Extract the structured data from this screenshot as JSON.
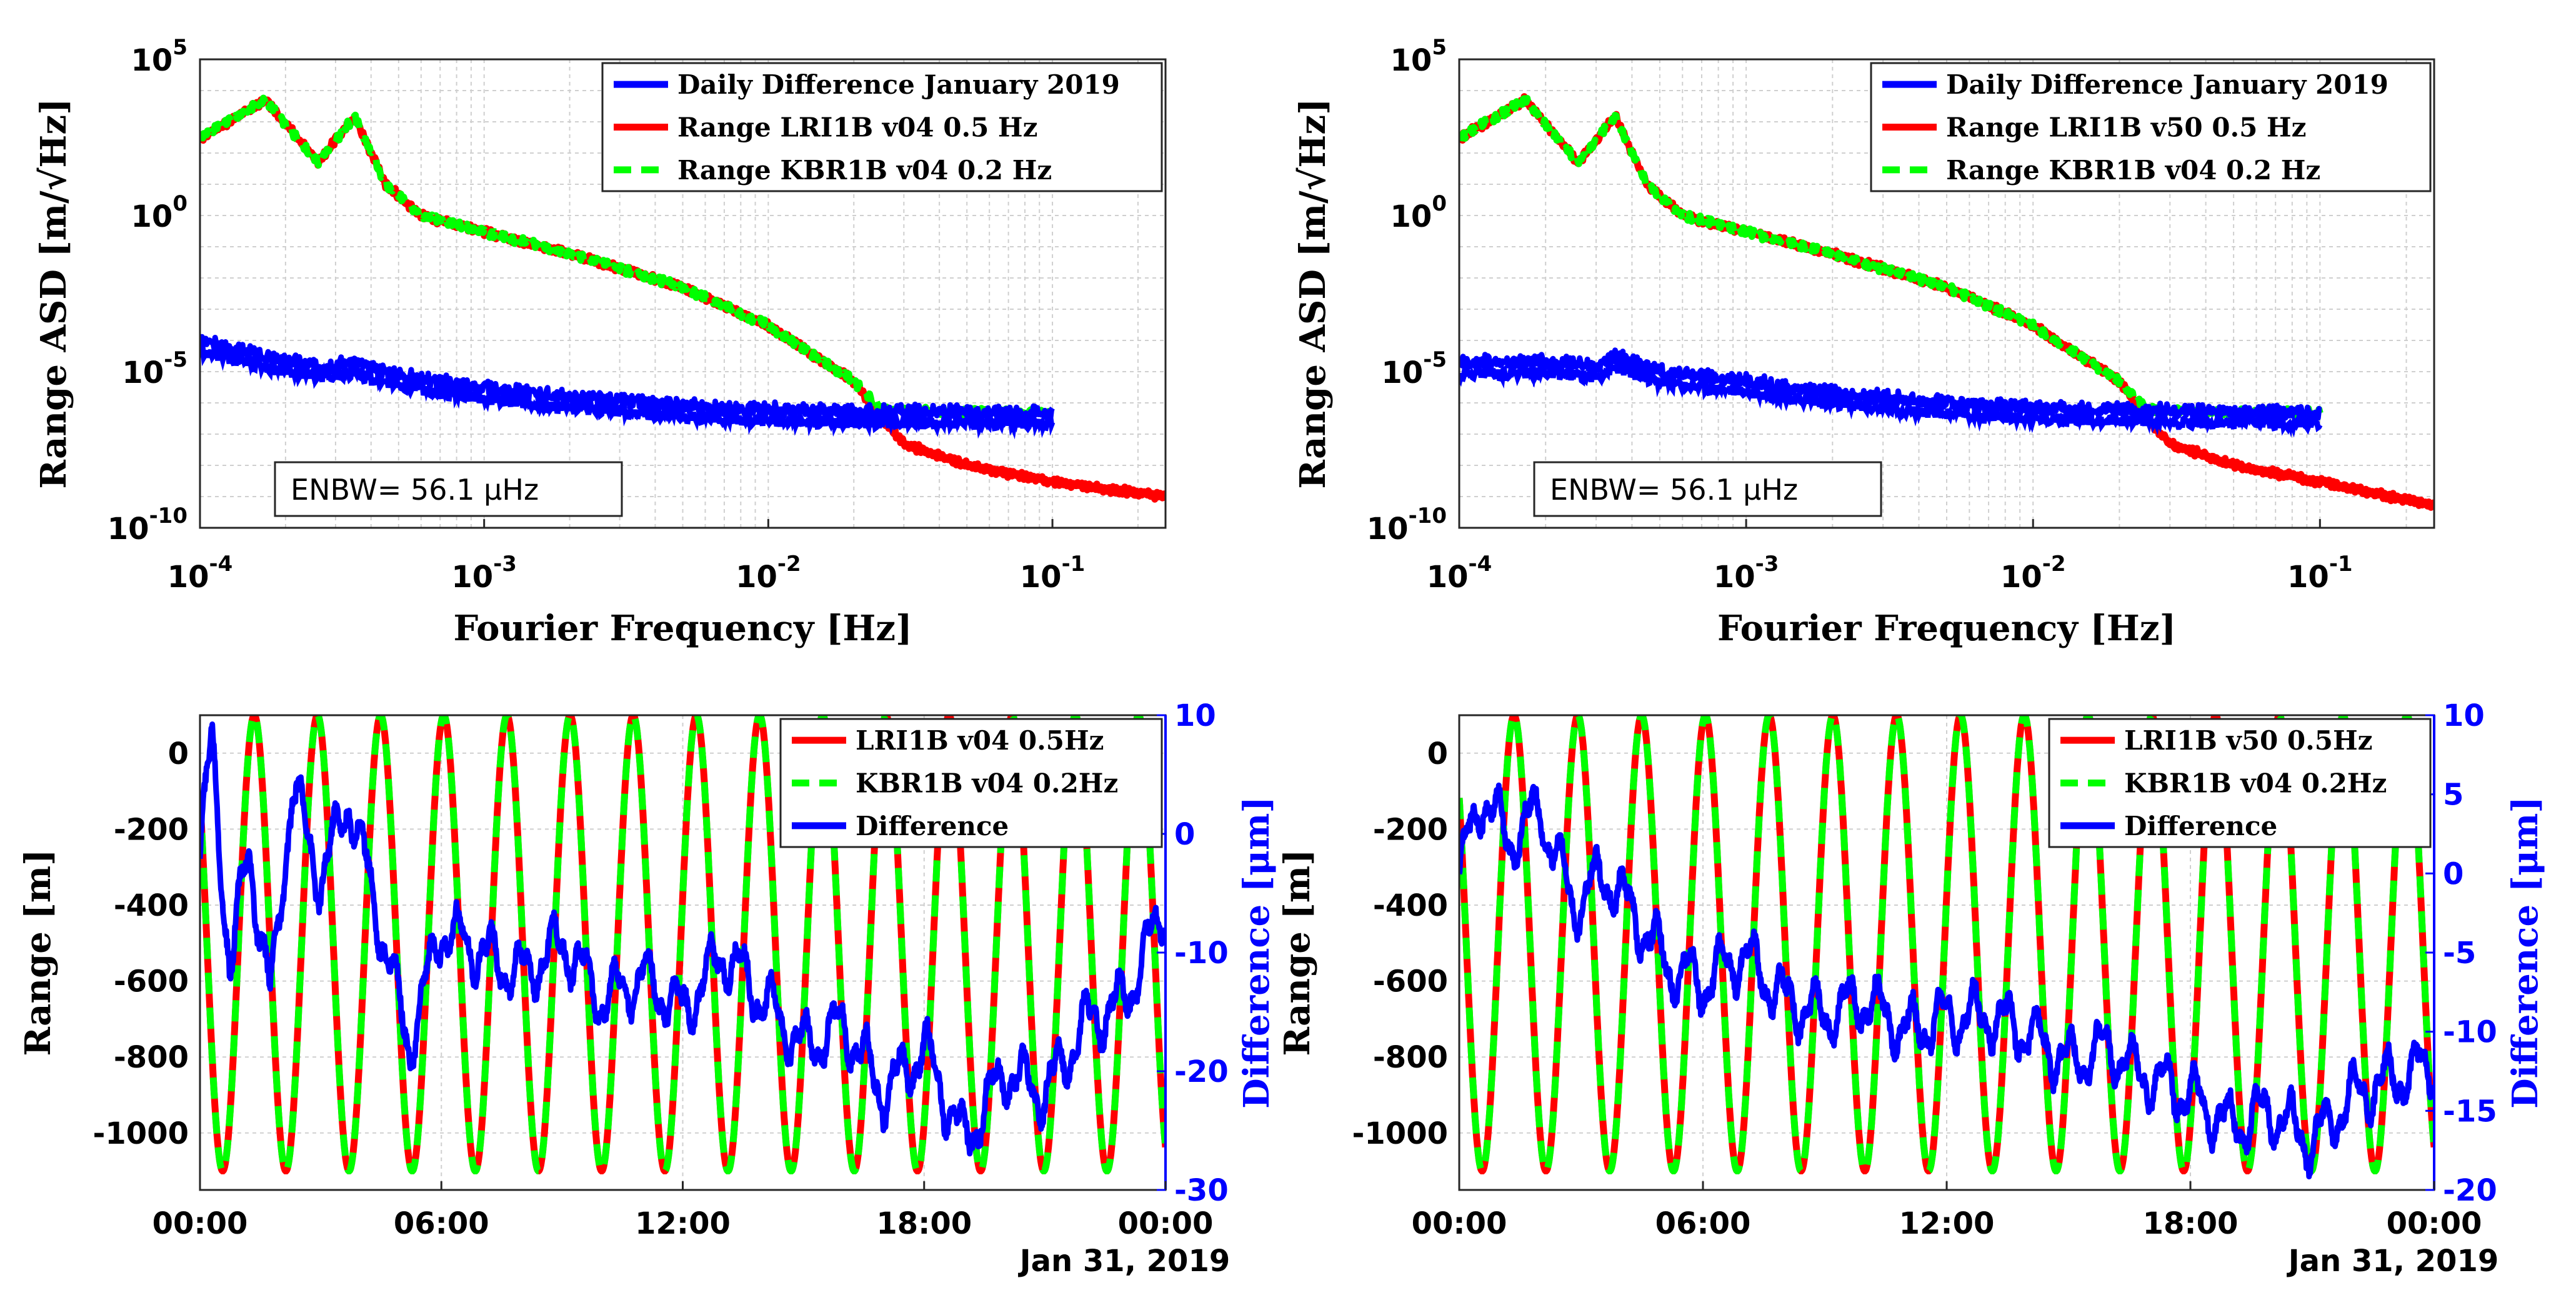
{
  "colors": {
    "blue": "#0000ff",
    "red": "#ff0000",
    "green": "#00ff00"
  },
  "chart_data": [
    {
      "type": "line",
      "panel": "top-left",
      "xscale": "log",
      "yscale": "log",
      "xlim": [
        0.0001,
        0.25
      ],
      "ylim": [
        1e-10,
        100000.0
      ],
      "xticks": [
        {
          "base": "10",
          "exp": "-4"
        },
        {
          "base": "10",
          "exp": "-3"
        },
        {
          "base": "10",
          "exp": "-2"
        },
        {
          "base": "10",
          "exp": "-1"
        }
      ],
      "yticks": [
        {
          "base": "10",
          "exp": "-10"
        },
        {
          "base": "10",
          "exp": "-5"
        },
        {
          "base": "10",
          "exp": "0"
        },
        {
          "base": "10",
          "exp": "5"
        }
      ],
      "xlabel": "Fourier Frequency [Hz]",
      "ylabel": "Range ASD [m/√Hz]",
      "annotation": "ENBW= 56.1 μHz",
      "legend_placement": "top-right",
      "grid": true,
      "series": [
        {
          "name": "Daily Difference January 2019",
          "color": "#0000ff",
          "style": "solid",
          "x": [
            0.0001,
            0.00017,
            0.00026,
            0.00035,
            0.00045,
            0.0006,
            0.001,
            0.002,
            0.005,
            0.01,
            0.02,
            0.05,
            0.1
          ],
          "y": [
            0.0001,
            3e-05,
            1.5e-05,
            2e-05,
            1e-05,
            6e-06,
            3e-06,
            1.5e-06,
            8e-07,
            6e-07,
            5e-07,
            5e-07,
            5e-07
          ]
        },
        {
          "name": "Range LRI1B v04 0.5 Hz",
          "color": "#ff0000",
          "style": "solid",
          "x": [
            0.0001,
            0.00017,
            0.00026,
            0.00035,
            0.00045,
            0.0006,
            0.001,
            0.002,
            0.005,
            0.01,
            0.02,
            0.025,
            0.03,
            0.05,
            0.1,
            0.25
          ],
          "y": [
            300,
            5000,
            50,
            1500,
            10,
            1,
            0.3,
            0.06,
            0.005,
            0.0003,
            5e-06,
            3e-07,
            5e-08,
            1e-08,
            3e-09,
            1e-09
          ]
        },
        {
          "name": "Range KBR1B v04 0.2 Hz",
          "color": "#00ff00",
          "style": "dashed",
          "x": [
            0.0001,
            0.00017,
            0.00026,
            0.00035,
            0.00045,
            0.0006,
            0.001,
            0.002,
            0.005,
            0.01,
            0.02,
            0.025,
            0.05,
            0.1
          ],
          "y": [
            300,
            5000,
            50,
            1500,
            10,
            1,
            0.3,
            0.06,
            0.005,
            0.0003,
            5e-06,
            6e-07,
            5e-07,
            5e-07
          ]
        }
      ]
    },
    {
      "type": "line",
      "panel": "top-right",
      "xscale": "log",
      "yscale": "log",
      "xlim": [
        0.0001,
        0.25
      ],
      "ylim": [
        1e-10,
        100000.0
      ],
      "xticks": [
        {
          "base": "10",
          "exp": "-4"
        },
        {
          "base": "10",
          "exp": "-3"
        },
        {
          "base": "10",
          "exp": "-2"
        },
        {
          "base": "10",
          "exp": "-1"
        }
      ],
      "yticks": [
        {
          "base": "10",
          "exp": "-10"
        },
        {
          "base": "10",
          "exp": "-5"
        },
        {
          "base": "10",
          "exp": "0"
        },
        {
          "base": "10",
          "exp": "5"
        }
      ],
      "xlabel": "Fourier Frequency [Hz]",
      "ylabel": "Range ASD [m/√Hz]",
      "annotation": "ENBW= 56.1 μHz",
      "legend_placement": "top-right",
      "grid": true,
      "series": [
        {
          "name": "Daily Difference January 2019",
          "color": "#0000ff",
          "style": "solid",
          "x": [
            0.0001,
            0.0002,
            0.0003,
            0.00035,
            0.0005,
            0.001,
            0.002,
            0.005,
            0.01,
            0.02,
            0.05,
            0.1
          ],
          "y": [
            2e-05,
            2e-05,
            1.5e-05,
            3e-05,
            1e-05,
            5e-06,
            2e-06,
            1e-06,
            7e-07,
            6e-07,
            5e-07,
            5e-07
          ]
        },
        {
          "name": "Range LRI1B v50 0.5 Hz",
          "color": "#ff0000",
          "style": "solid",
          "x": [
            0.0001,
            0.00017,
            0.00026,
            0.00035,
            0.00045,
            0.0006,
            0.001,
            0.002,
            0.005,
            0.01,
            0.02,
            0.025,
            0.03,
            0.05,
            0.1,
            0.25
          ],
          "y": [
            300,
            5000,
            50,
            1500,
            10,
            1,
            0.3,
            0.06,
            0.005,
            0.0003,
            5e-06,
            3e-07,
            5e-08,
            1e-08,
            3e-09,
            5e-10
          ]
        },
        {
          "name": "Range KBR1B v04 0.2 Hz",
          "color": "#00ff00",
          "style": "dashed",
          "x": [
            0.0001,
            0.00017,
            0.00026,
            0.00035,
            0.00045,
            0.0006,
            0.001,
            0.002,
            0.005,
            0.01,
            0.02,
            0.025,
            0.05,
            0.1
          ],
          "y": [
            300,
            5000,
            50,
            1500,
            10,
            1,
            0.3,
            0.06,
            0.005,
            0.0003,
            5e-06,
            6e-07,
            5e-07,
            5e-07
          ]
        }
      ]
    },
    {
      "type": "line",
      "panel": "bottom-left",
      "xlim": [
        0,
        24
      ],
      "ylim": [
        -1150,
        100
      ],
      "y2lim": [
        -30,
        10
      ],
      "xticks": [
        "00:00",
        "06:00",
        "12:00",
        "18:00",
        "00:00"
      ],
      "xtick_values": [
        0,
        6,
        12,
        18,
        24
      ],
      "yticks": [
        -1000,
        -800,
        -600,
        -400,
        -200,
        0
      ],
      "y2ticks": [
        -30,
        -20,
        -10,
        0,
        10
      ],
      "date_label": "Jan 31, 2019",
      "ylabel": "Range [m]",
      "y2label": "Difference [μm]",
      "legend_placement": "top-right",
      "grid": true,
      "series": [
        {
          "name": "LRI1B v04 0.5Hz",
          "color": "#ff0000",
          "style": "solid",
          "axis": "left",
          "model": {
            "center": -500,
            "amplitude": 600,
            "period_h": 1.57,
            "phase_h": 1.35
          }
        },
        {
          "name": "KBR1B v04 0.2Hz",
          "color": "#00ff00",
          "style": "dashed",
          "axis": "left",
          "model": {
            "center": -500,
            "amplitude": 600,
            "period_h": 1.57,
            "phase_h": 1.35
          }
        },
        {
          "name": "Difference",
          "color": "#0000ff",
          "style": "solid",
          "axis": "right",
          "x": [
            0,
            0.3,
            0.75,
            1.2,
            1.75,
            2.3,
            3.0,
            3.7,
            4.5,
            5.2,
            6,
            7,
            8,
            9,
            10,
            11,
            12,
            13,
            14,
            15,
            16,
            17,
            18,
            19,
            20,
            21,
            22,
            23,
            24
          ],
          "y": [
            -2,
            8,
            -12,
            -1,
            -14,
            4,
            -4,
            3,
            -8,
            -18,
            -8,
            -10,
            -12,
            -9,
            -14,
            -12,
            -15,
            -10,
            -14,
            -18,
            -16,
            -22,
            -18,
            -26,
            -20,
            -22,
            -16,
            -14,
            -6
          ]
        }
      ]
    },
    {
      "type": "line",
      "panel": "bottom-right",
      "xlim": [
        0,
        24
      ],
      "ylim": [
        -1150,
        100
      ],
      "y2lim": [
        -20,
        10
      ],
      "xticks": [
        "00:00",
        "06:00",
        "12:00",
        "18:00",
        "00:00"
      ],
      "xtick_values": [
        0,
        6,
        12,
        18,
        24
      ],
      "yticks": [
        -1000,
        -800,
        -600,
        -400,
        -200,
        0
      ],
      "y2ticks": [
        -20,
        -15,
        -10,
        -5,
        0,
        5,
        10
      ],
      "date_label": "Jan 31, 2019",
      "ylabel": "Range [m]",
      "y2label": "Difference [μm]",
      "legend_placement": "top-right",
      "grid": true,
      "series": [
        {
          "name": "LRI1B v50 0.5Hz",
          "color": "#ff0000",
          "style": "solid",
          "axis": "left",
          "model": {
            "center": -500,
            "amplitude": 600,
            "period_h": 1.57,
            "phase_h": 1.35
          }
        },
        {
          "name": "KBR1B v04 0.2Hz",
          "color": "#00ff00",
          "style": "dashed",
          "axis": "left",
          "model": {
            "center": -500,
            "amplitude": 600,
            "period_h": 1.57,
            "phase_h": 1.35
          }
        },
        {
          "name": "Difference",
          "color": "#0000ff",
          "style": "solid",
          "axis": "right",
          "x": [
            0,
            0.6,
            1.2,
            2.0,
            2.8,
            3.6,
            4.4,
            5.2,
            6,
            7,
            8,
            9,
            10,
            11,
            12,
            13,
            14,
            15,
            16,
            17,
            18,
            19,
            20,
            21,
            22,
            23,
            24
          ],
          "y": [
            0,
            5,
            2,
            4,
            -2,
            0,
            -3,
            -6,
            -7,
            -5,
            -8,
            -9,
            -8,
            -10,
            -9,
            -9,
            -10,
            -12,
            -11,
            -13,
            -14,
            -16,
            -15,
            -17,
            -14,
            -13,
            -12
          ]
        }
      ]
    }
  ]
}
